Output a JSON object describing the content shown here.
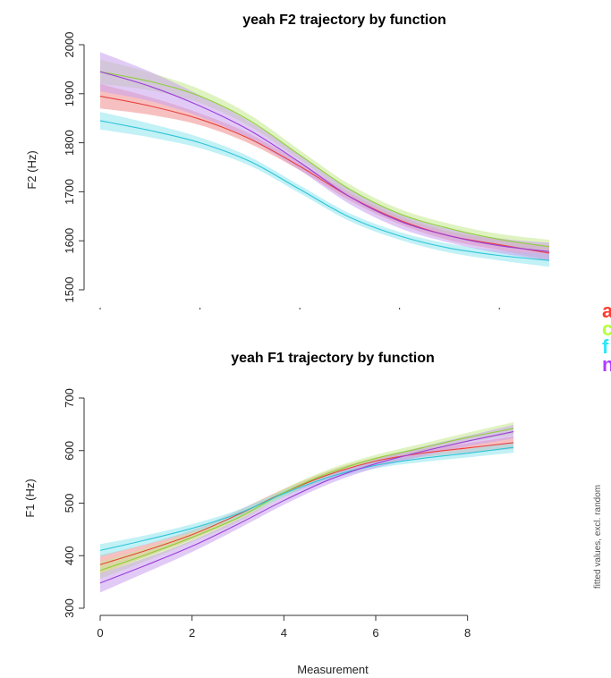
{
  "chart_data": [
    {
      "id": "f2",
      "type": "line",
      "title": "yeah F2 trajectory by function",
      "xlabel": "",
      "ylabel": "F2 (Hz)",
      "xlim": [
        0,
        9
      ],
      "ylim": [
        1500,
        2000
      ],
      "yticks": [
        1500,
        1600,
        1700,
        1800,
        1900,
        2000
      ],
      "xticks": [
        0,
        2,
        4,
        6,
        8
      ],
      "x_tick_labels_visible": false,
      "grid": false,
      "series": [
        {
          "color": "#e8413e",
          "ci_color": "#f08c8c",
          "x": [
            0,
            1,
            2,
            3,
            4,
            5,
            6,
            7,
            8,
            9
          ],
          "y": [
            1895,
            1875,
            1848,
            1808,
            1752,
            1690,
            1642,
            1610,
            1592,
            1575
          ],
          "ci": [
            25,
            18,
            12,
            10,
            8,
            8,
            8,
            9,
            11,
            15
          ]
        },
        {
          "color": "#8fcf3c",
          "ci_color": "#c4ea8e",
          "x": [
            0,
            1,
            2,
            3,
            4,
            5,
            6,
            7,
            8,
            9
          ],
          "y": [
            1945,
            1925,
            1895,
            1845,
            1775,
            1705,
            1655,
            1625,
            1603,
            1588
          ],
          "ci": [
            25,
            18,
            14,
            12,
            10,
            10,
            10,
            10,
            11,
            14
          ]
        },
        {
          "color": "#2ec5d8",
          "ci_color": "#8fe6ef",
          "x": [
            0,
            1,
            2,
            3,
            4,
            5,
            6,
            7,
            8,
            9
          ],
          "y": [
            1845,
            1825,
            1800,
            1762,
            1705,
            1648,
            1610,
            1585,
            1570,
            1560
          ],
          "ci": [
            18,
            14,
            11,
            9,
            8,
            8,
            8,
            9,
            10,
            13
          ]
        },
        {
          "color": "#9b3fd8",
          "ci_color": "#c9a0ee",
          "x": [
            0,
            1,
            2,
            3,
            4,
            5,
            6,
            7,
            8,
            9
          ],
          "y": [
            1945,
            1915,
            1875,
            1825,
            1760,
            1690,
            1640,
            1610,
            1590,
            1578
          ],
          "ci": [
            40,
            30,
            22,
            18,
            16,
            15,
            14,
            14,
            15,
            18
          ]
        }
      ]
    },
    {
      "id": "f1",
      "type": "line",
      "title": "yeah F1 trajectory by function",
      "xlabel": "Measurement",
      "ylabel": "F1 (Hz)",
      "xlim": [
        0,
        9
      ],
      "ylim": [
        300,
        700
      ],
      "yticks": [
        300,
        400,
        500,
        600,
        700
      ],
      "xticks": [
        0,
        2,
        4,
        6,
        8
      ],
      "x_tick_labels_visible": true,
      "grid": false,
      "series": [
        {
          "color": "#e8413e",
          "ci_color": "#f08c8c",
          "x": [
            0,
            1,
            2,
            3,
            4,
            5,
            6,
            7,
            8,
            9
          ],
          "y": [
            383,
            410,
            440,
            478,
            520,
            555,
            580,
            595,
            605,
            615
          ],
          "ci": [
            18,
            12,
            9,
            8,
            7,
            7,
            7,
            8,
            9,
            12
          ]
        },
        {
          "color": "#8fcf3c",
          "ci_color": "#c4ea8e",
          "x": [
            0,
            1,
            2,
            3,
            4,
            5,
            6,
            7,
            8,
            9
          ],
          "y": [
            372,
            402,
            435,
            472,
            520,
            558,
            585,
            605,
            625,
            642
          ],
          "ci": [
            16,
            12,
            9,
            8,
            7,
            7,
            7,
            8,
            9,
            12
          ]
        },
        {
          "color": "#2ec5d8",
          "ci_color": "#8fe6ef",
          "x": [
            0,
            1,
            2,
            3,
            4,
            5,
            6,
            7,
            8,
            9
          ],
          "y": [
            410,
            430,
            452,
            480,
            518,
            550,
            572,
            585,
            595,
            606
          ],
          "ci": [
            12,
            9,
            8,
            7,
            6,
            6,
            6,
            7,
            8,
            10
          ]
        },
        {
          "color": "#9b3fd8",
          "ci_color": "#c9a0ee",
          "x": [
            0,
            1,
            2,
            3,
            4,
            5,
            6,
            7,
            8,
            9
          ],
          "y": [
            348,
            382,
            418,
            460,
            505,
            545,
            575,
            598,
            618,
            636
          ],
          "ci": [
            18,
            14,
            11,
            9,
            8,
            8,
            8,
            9,
            10,
            13
          ]
        }
      ]
    }
  ],
  "side_note": "fitted values, excl. random",
  "legend": {
    "placement": "right",
    "entries": [
      {
        "label": "a",
        "color": "#ff3b30"
      },
      {
        "label": "c",
        "color": "#b5ff3a"
      },
      {
        "label": "f",
        "color": "#2ee6ff"
      },
      {
        "label": "n",
        "color": "#b03bff"
      }
    ]
  }
}
